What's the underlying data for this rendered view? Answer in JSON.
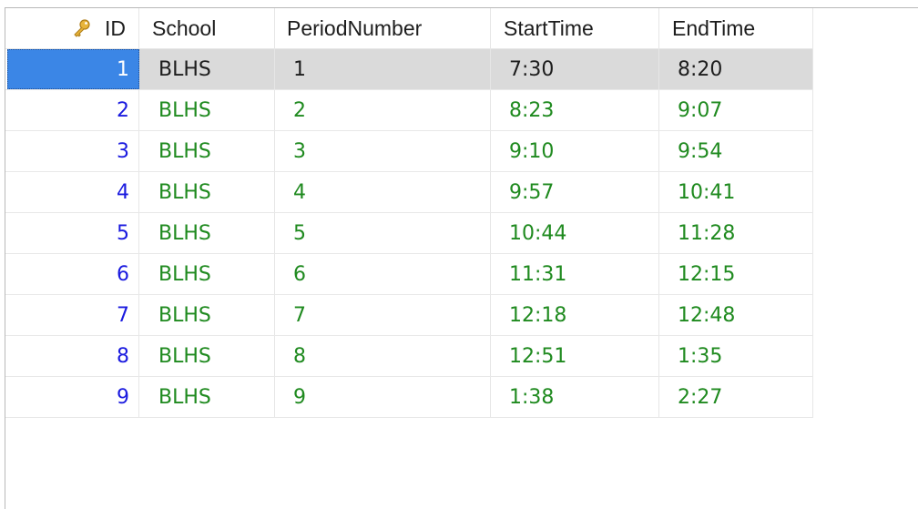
{
  "columns": {
    "id": "ID",
    "school": "School",
    "period_number": "PeriodNumber",
    "start_time": "StartTime",
    "end_time": "EndTime"
  },
  "key_icon": "primary-key-icon",
  "colors": {
    "id_text": "#1a1adf",
    "value_text": "#1f8a1f",
    "selected_row_bg": "#dadada",
    "selected_id_bg": "#3b86e6"
  },
  "rows": [
    {
      "id": "1",
      "school": "BLHS",
      "period": "1",
      "start": "7:30",
      "end": "8:20",
      "selected": true
    },
    {
      "id": "2",
      "school": "BLHS",
      "period": "2",
      "start": "8:23",
      "end": "9:07"
    },
    {
      "id": "3",
      "school": "BLHS",
      "period": "3",
      "start": "9:10",
      "end": "9:54"
    },
    {
      "id": "4",
      "school": "BLHS",
      "period": "4",
      "start": "9:57",
      "end": "10:41"
    },
    {
      "id": "5",
      "school": "BLHS",
      "period": "5",
      "start": "10:44",
      "end": "11:28"
    },
    {
      "id": "6",
      "school": "BLHS",
      "period": "6",
      "start": "11:31",
      "end": "12:15"
    },
    {
      "id": "7",
      "school": "BLHS",
      "period": "7",
      "start": "12:18",
      "end": "12:48"
    },
    {
      "id": "8",
      "school": "BLHS",
      "period": "8",
      "start": "12:51",
      "end": "1:35"
    },
    {
      "id": "9",
      "school": "BLHS",
      "period": "9",
      "start": "1:38",
      "end": "2:27"
    }
  ]
}
